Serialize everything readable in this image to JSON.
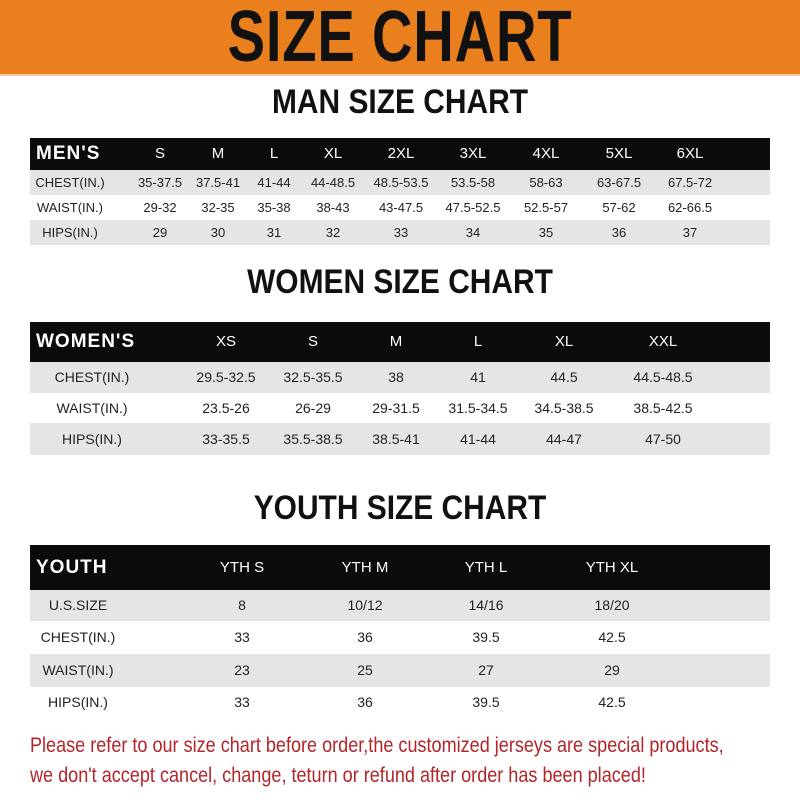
{
  "banner": {
    "title": "SIZE CHART",
    "color": "#ea7f1e"
  },
  "men": {
    "title": "MAN SIZE CHART",
    "header": [
      "MEN'S",
      "S",
      "M",
      "L",
      "XL",
      "2XL",
      "3XL",
      "4XL",
      "5XL",
      "6XL"
    ],
    "rows": [
      [
        "CHEST(IN.)",
        "35-37.5",
        "37.5-41",
        "41-44",
        "44-48.5",
        "48.5-53.5",
        "53.5-58",
        "58-63",
        "63-67.5",
        "67.5-72"
      ],
      [
        "WAIST(IN.)",
        "29-32",
        "32-35",
        "35-38",
        "38-43",
        "43-47.5",
        "47.5-52.5",
        "52.5-57",
        "57-62",
        "62-66.5"
      ],
      [
        "HIPS(IN.)",
        "29",
        "30",
        "31",
        "32",
        "33",
        "34",
        "35",
        "36",
        "37"
      ]
    ]
  },
  "women": {
    "title": "WOMEN SIZE CHART",
    "header": [
      "WOMEN'S",
      "XS",
      "S",
      "M",
      "L",
      "XL",
      "XXL"
    ],
    "rows": [
      [
        "CHEST(IN.)",
        "29.5-32.5",
        "32.5-35.5",
        "38",
        "41",
        "44.5",
        "44.5-48.5"
      ],
      [
        "WAIST(IN.)",
        "23.5-26",
        "26-29",
        "29-31.5",
        "31.5-34.5",
        "34.5-38.5",
        "38.5-42.5"
      ],
      [
        "HIPS(IN.)",
        "33-35.5",
        "35.5-38.5",
        "38.5-41",
        "41-44",
        "44-47",
        "47-50"
      ]
    ]
  },
  "youth": {
    "title": "YOUTH SIZE CHART",
    "header": [
      "YOUTH",
      "YTH S",
      "YTH M",
      "YTH L",
      "YTH XL"
    ],
    "rows": [
      [
        "U.S.SIZE",
        "8",
        "10/12",
        "14/16",
        "18/20"
      ],
      [
        "CHEST(IN.)",
        "33",
        "36",
        "39.5",
        "42.5"
      ],
      [
        "WAIST(IN.)",
        "23",
        "25",
        "27",
        "29"
      ],
      [
        "HIPS(IN.)",
        "33",
        "36",
        "39.5",
        "42.5"
      ]
    ]
  },
  "footer": {
    "line1": "Please refer to our size chart before order,the customized jerseys are special products,",
    "line2": "we don't accept cancel, change, teturn or refund after order has been placed!",
    "color": "#b3252b"
  }
}
